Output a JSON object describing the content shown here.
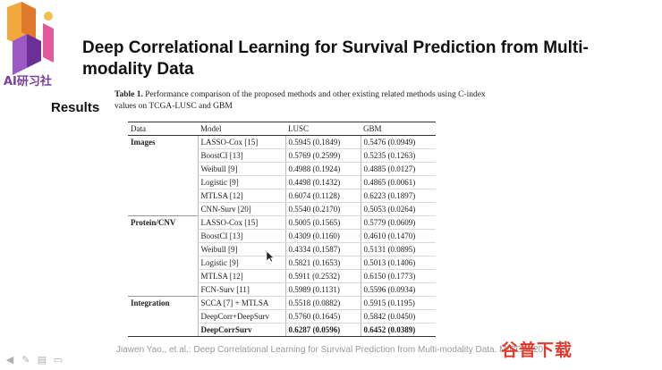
{
  "logo": {
    "text": "AI研习社",
    "accent": "#7b3fa0"
  },
  "slide": {
    "title": "Deep Correlational Learning for Survival Prediction from Multi-modality Data",
    "section": "Results"
  },
  "table": {
    "caption_label": "Table 1.",
    "caption_text": "Performance comparison of the proposed methods and other existing related methods using C-index values on TCGA-LUSC and GBM",
    "headers": [
      "Data",
      "Model",
      "LUSC",
      "GBM"
    ],
    "rows": [
      {
        "group": "Images",
        "model": "LASSO-Cox [15]",
        "lusc": "0.5945 (0.1849)",
        "gbm": "0.5476 (0.0949)"
      },
      {
        "group": "",
        "model": "BoostCI [13]",
        "lusc": "0.5769 (0.2599)",
        "gbm": "0.5235 (0.1263)"
      },
      {
        "group": "",
        "model": "Weibull [9]",
        "lusc": "0.4988 (0.1924)",
        "gbm": "0.4885 (0.0127)"
      },
      {
        "group": "",
        "model": "Logistic [9]",
        "lusc": "0.4498 (0.1432)",
        "gbm": "0.4865 (0.0061)"
      },
      {
        "group": "",
        "model": "MTLSA [12]",
        "lusc": "0.6074 (0.1128)",
        "gbm": "0.6223 (0.1897)"
      },
      {
        "group": "",
        "model": "CNN-Surv [20]",
        "lusc": "0.5540 (0.2170)",
        "gbm": "0.5053 (0.0264)"
      },
      {
        "group": "Protein/CNV",
        "model": "LASSO-Cox [15]",
        "lusc": "0.5005 (0.1565)",
        "gbm": "0.5779 (0.0609)"
      },
      {
        "group": "",
        "model": "BoostCI [13]",
        "lusc": "0.4309 (0.1160)",
        "gbm": "0.4610 (0.1470)"
      },
      {
        "group": "",
        "model": "Weibull [9]",
        "lusc": "0.4334 (0.1587)",
        "gbm": "0.5131 (0.0895)"
      },
      {
        "group": "",
        "model": "Logistic [9]",
        "lusc": "0.5821 (0.1653)",
        "gbm": "0.5013 (0.1406)"
      },
      {
        "group": "",
        "model": "MTLSA [12]",
        "lusc": "0.5911 (0.2532)",
        "gbm": "0.6150 (0.1773)"
      },
      {
        "group": "",
        "model": "FCN-Surv [11]",
        "lusc": "0.5989 (0.1131)",
        "gbm": "0.5596 (0.0934)"
      },
      {
        "group": "Integration",
        "model": "SCCA [7] + MTLSA",
        "lusc": "0.5518 (0.0882)",
        "gbm": "0.5915 (0.1195)"
      },
      {
        "group": "",
        "model": "DeepCorr+DeepSurv",
        "lusc": "0.5760 (0.1645)",
        "gbm": "0.5842 (0.0450)"
      },
      {
        "group": "",
        "model": "DeepCorrSurv",
        "lusc": "0.6287 (0.0596)",
        "gbm": "0.6452 (0.0389)"
      }
    ]
  },
  "footer": {
    "citation": "Jiawen Yao., et al.: Deep Correlational Learning for Survival Prediction from Multi-modality Data. MICCAI 20"
  },
  "nav": {
    "icons": [
      "arrow-left-icon",
      "pen-icon",
      "menu-icon",
      "slides-icon"
    ]
  },
  "watermark": {
    "text": "谷普下载",
    "color": "#e23b2e"
  }
}
